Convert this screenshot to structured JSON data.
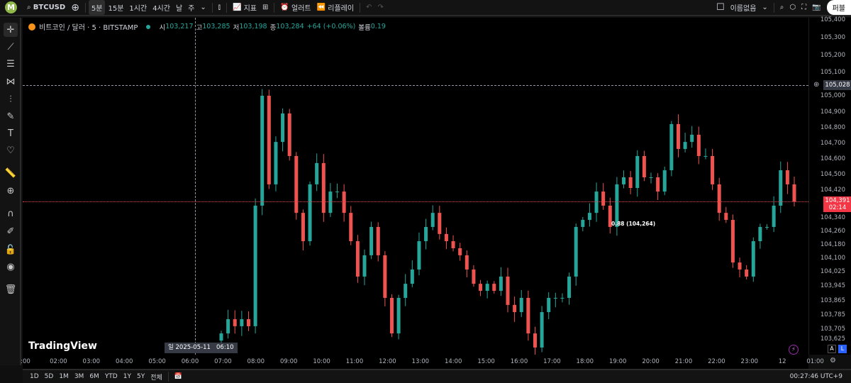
{
  "toolbar": {
    "logo": "M",
    "symbol": "BTCUSD",
    "intervals": [
      "5분",
      "15분",
      "1시간",
      "4시간",
      "날",
      "주"
    ],
    "active_interval": "5분",
    "indicators": "지표",
    "alert": "얼러트",
    "replay": "리플레이",
    "layout_name": "이름없음",
    "publish": "퍼블"
  },
  "legend": {
    "title": "비트코인 / 달러 · 5 · BITSTAMP",
    "o_label": "시",
    "o": "103,217",
    "h_label": "고",
    "h": "103,285",
    "l_label": "저",
    "l": "103,198",
    "c_label": "종",
    "c": "103,284",
    "change": "+64 (+0.06%)",
    "vol_label": "볼륨",
    "vol": "0.19"
  },
  "watermark": "TradingView",
  "price_axis": {
    "labels": [
      "105,400",
      "105,300",
      "105,200",
      "105,100",
      "105,000",
      "104,900",
      "104,800",
      "104,700",
      "104,600",
      "104,500",
      "104,420",
      "104,340",
      "104,260",
      "104,180",
      "104,100",
      "104,025",
      "103,945",
      "103,865",
      "103,785",
      "103,705",
      "103,625"
    ],
    "crosshair_price": "105,028",
    "last_price": "104,391",
    "countdown": "02:14",
    "auto": "A",
    "log": "L"
  },
  "time_axis": {
    "labels": [
      ":00",
      "02:00",
      "03:00",
      "04:00",
      "05:00",
      "06:00",
      "07:00",
      "08:00",
      "09:00",
      "10:00",
      "11:00",
      "12:00",
      "13:00",
      "14:00",
      "15:00",
      "16:00",
      "17:00",
      "18:00",
      "19:00",
      "20:00",
      "21:00",
      "22:00",
      "23:00",
      "12",
      "01:00"
    ],
    "crosshair_time": "일 2025-05-11   06:10"
  },
  "annotation": "(104,264)",
  "annotation_prefix": "0.88",
  "ranges": [
    "1D",
    "5D",
    "1M",
    "3M",
    "6M",
    "YTD",
    "1Y",
    "5Y",
    "전체"
  ],
  "clock": "00:27:46 UTC+9",
  "colors": {
    "up": "#26a69a",
    "down": "#ef5350",
    "last": "#f23645"
  },
  "chart_data": {
    "type": "candlestick",
    "closes": [
      103660,
      103739,
      103700,
      103739,
      103700,
      104368,
      104977,
      104486,
      104721,
      104879,
      104643,
      104328,
      104171,
      104486,
      104604,
      104328,
      104446,
      104446,
      104328,
      104171,
      103975,
      104093,
      104250,
      104093,
      103857,
      103660,
      103857,
      103935,
      104014,
      104171,
      104250,
      104328,
      104211,
      104171,
      104132,
      104093,
      104014,
      103935,
      103896,
      103935,
      103896,
      103975,
      103818,
      103778,
      103857,
      103660,
      103582,
      103778,
      103857,
      103857,
      103857,
      103975,
      104250,
      104289,
      104328,
      104446,
      104368,
      104250,
      104486,
      104525,
      104466,
      104643,
      104525,
      104525,
      104446,
      104564,
      104820,
      104682,
      104721,
      104761,
      104643,
      104643,
      104486,
      104328,
      104289,
      104053,
      104014,
      103975,
      104171,
      104250,
      104250,
      104368,
      104564,
      104486,
      104391
    ]
  }
}
